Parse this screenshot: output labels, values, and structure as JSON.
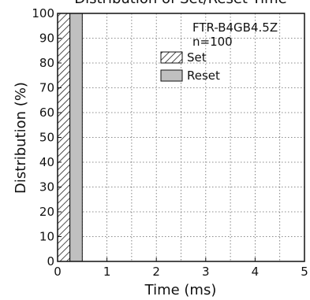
{
  "chart_data": {
    "type": "bar",
    "title": "Distribution of Set/Reset Time",
    "xlabel": "Time (ms)",
    "ylabel": "Distribution (%)",
    "xlim": [
      0,
      5
    ],
    "ylim": [
      0,
      100
    ],
    "x_ticks": [
      "0",
      "1",
      "2",
      "3",
      "4",
      "5"
    ],
    "y_ticks": [
      "0",
      "10",
      "20",
      "30",
      "40",
      "50",
      "60",
      "70",
      "80",
      "90",
      "100"
    ],
    "grid": true,
    "legend_position": "top-right",
    "annotations": [
      "FTR-B4GB4.5Z",
      "n=100"
    ],
    "series": [
      {
        "name": "Set",
        "pattern": "hatched",
        "color": "#ffffff",
        "bars": [
          {
            "x_start": 0.0,
            "x_end": 0.25,
            "value": 100
          }
        ]
      },
      {
        "name": "Reset",
        "pattern": "solid",
        "color": "#c0c0c0",
        "bars": [
          {
            "x_start": 0.25,
            "x_end": 0.5,
            "value": 100
          }
        ]
      }
    ]
  }
}
